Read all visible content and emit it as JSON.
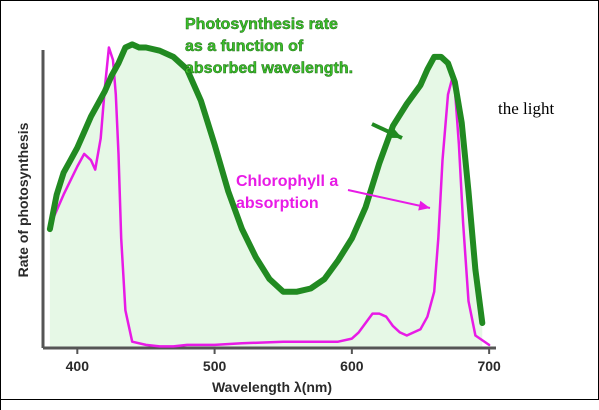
{
  "side_text": "the light",
  "chart_data": {
    "type": "line",
    "title_lines": [
      "Photosynthesis rate",
      "as a function of",
      "absorbed wavelength."
    ],
    "annotation_lines": [
      "Chlorophyll a",
      "absorption"
    ],
    "xlabel": "Wavelength λ(nm)",
    "ylabel": "Rate of photosynthesis",
    "xlim": [
      375,
      705
    ],
    "ylim": [
      0,
      100
    ],
    "x_ticks": [
      400,
      500,
      600,
      700
    ],
    "grid": false,
    "colors": {
      "photosynthesis": "#218a21",
      "absorption": "#e81be6",
      "fill": "#e6f8e6",
      "axis": "#555555",
      "title": "#3bbf29"
    },
    "series": [
      {
        "key": "photosynthesis",
        "x": [
          380,
          385,
          390,
          395,
          400,
          405,
          410,
          415,
          420,
          425,
          430,
          435,
          440,
          445,
          450,
          460,
          470,
          480,
          490,
          500,
          510,
          520,
          530,
          540,
          550,
          560,
          570,
          580,
          590,
          600,
          610,
          620,
          630,
          640,
          650,
          655,
          660,
          665,
          670,
          675,
          680,
          685,
          690,
          695
        ],
        "values": [
          38,
          49,
          56,
          60,
          64,
          69,
          74,
          78,
          82,
          87,
          91,
          96,
          97,
          96,
          96,
          95,
          93,
          89,
          79,
          65,
          50,
          38,
          29,
          22,
          18,
          18,
          19,
          22,
          28,
          35,
          45,
          59,
          71,
          78,
          84,
          89,
          93,
          93,
          91,
          85,
          72,
          50,
          25,
          8
        ]
      },
      {
        "key": "absorption",
        "x": [
          380,
          390,
          400,
          405,
          410,
          413,
          417,
          420,
          423,
          426,
          428,
          430,
          432,
          435,
          440,
          450,
          460,
          470,
          480,
          500,
          520,
          550,
          580,
          590,
          600,
          605,
          610,
          615,
          620,
          625,
          630,
          635,
          640,
          650,
          655,
          660,
          663,
          666,
          670,
          673,
          675,
          678,
          681,
          685,
          690,
          700
        ],
        "values": [
          39,
          49,
          58,
          62,
          60,
          57,
          67,
          83,
          96,
          92,
          81,
          62,
          35,
          12,
          2,
          1,
          0.5,
          0.5,
          1,
          1,
          1.5,
          2,
          2,
          2,
          3,
          5,
          8,
          11,
          11,
          10,
          7,
          5,
          4,
          6,
          10,
          18,
          35,
          60,
          81,
          86,
          83,
          65,
          40,
          15,
          4,
          1
        ]
      }
    ]
  }
}
